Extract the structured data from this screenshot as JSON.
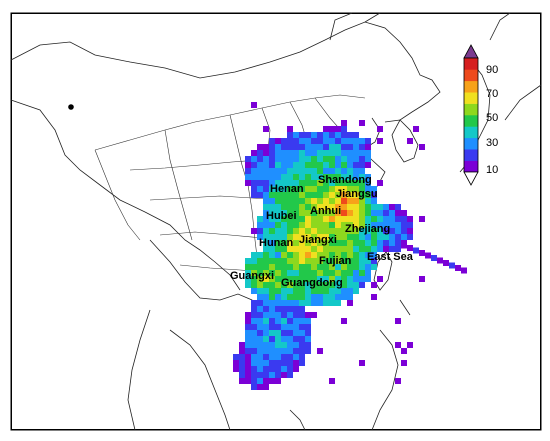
{
  "map": {
    "labels": [
      {
        "id": "shandong",
        "text": "Shandong"
      },
      {
        "id": "henan",
        "text": "Henan"
      },
      {
        "id": "jiangsu",
        "text": "Jiangsu"
      },
      {
        "id": "hubei",
        "text": "Hubei"
      },
      {
        "id": "anhui",
        "text": "Anhui"
      },
      {
        "id": "zhejiang",
        "text": "Zhejiang"
      },
      {
        "id": "jiangxi",
        "text": "Jiangxi"
      },
      {
        "id": "hunan",
        "text": "Hunan"
      },
      {
        "id": "fujian",
        "text": "Fujian"
      },
      {
        "id": "east-sea",
        "text": "East Sea"
      },
      {
        "id": "guangxi",
        "text": "Guangxi"
      },
      {
        "id": "guangdong",
        "text": "Guangdong"
      }
    ]
  },
  "colorbar": {
    "ticks": [
      "90",
      "70",
      "50",
      "30",
      "10"
    ],
    "colors": [
      "#7b00d6",
      "#3a3af0",
      "#1f8fff",
      "#14c8c8",
      "#22c84a",
      "#8ed81e",
      "#f0e020",
      "#f7a21a",
      "#ee4a1c",
      "#d61f1f"
    ]
  }
}
